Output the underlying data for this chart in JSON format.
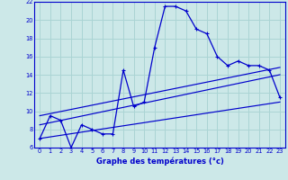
{
  "title": "",
  "xlabel": "Graphe des températures (°c)",
  "ylabel": "",
  "background_color": "#cce8e8",
  "grid_color": "#aad4d4",
  "line_color": "#0000cc",
  "xlim": [
    -0.5,
    23.5
  ],
  "ylim": [
    6,
    22
  ],
  "xticks": [
    0,
    1,
    2,
    3,
    4,
    5,
    6,
    7,
    8,
    9,
    10,
    11,
    12,
    13,
    14,
    15,
    16,
    17,
    18,
    19,
    20,
    21,
    22,
    23
  ],
  "yticks": [
    6,
    8,
    10,
    12,
    14,
    16,
    18,
    20,
    22
  ],
  "series": {
    "main": {
      "x": [
        0,
        1,
        2,
        3,
        4,
        5,
        6,
        7,
        8,
        9,
        10,
        11,
        12,
        13,
        14,
        15,
        16,
        17,
        18,
        19,
        20,
        21,
        22,
        23
      ],
      "y": [
        7,
        9.5,
        9,
        6,
        8.5,
        8,
        7.5,
        7.5,
        14.5,
        10.5,
        11,
        17,
        21.5,
        21.5,
        21,
        19,
        18.5,
        16,
        15,
        15.5,
        15,
        15,
        14.5,
        11.5
      ]
    },
    "low": {
      "x": [
        0,
        23
      ],
      "y": [
        7,
        11
      ]
    },
    "mid": {
      "x": [
        0,
        23
      ],
      "y": [
        8.5,
        14.0
      ]
    },
    "high": {
      "x": [
        0,
        23
      ],
      "y": [
        9.5,
        14.8
      ]
    }
  }
}
